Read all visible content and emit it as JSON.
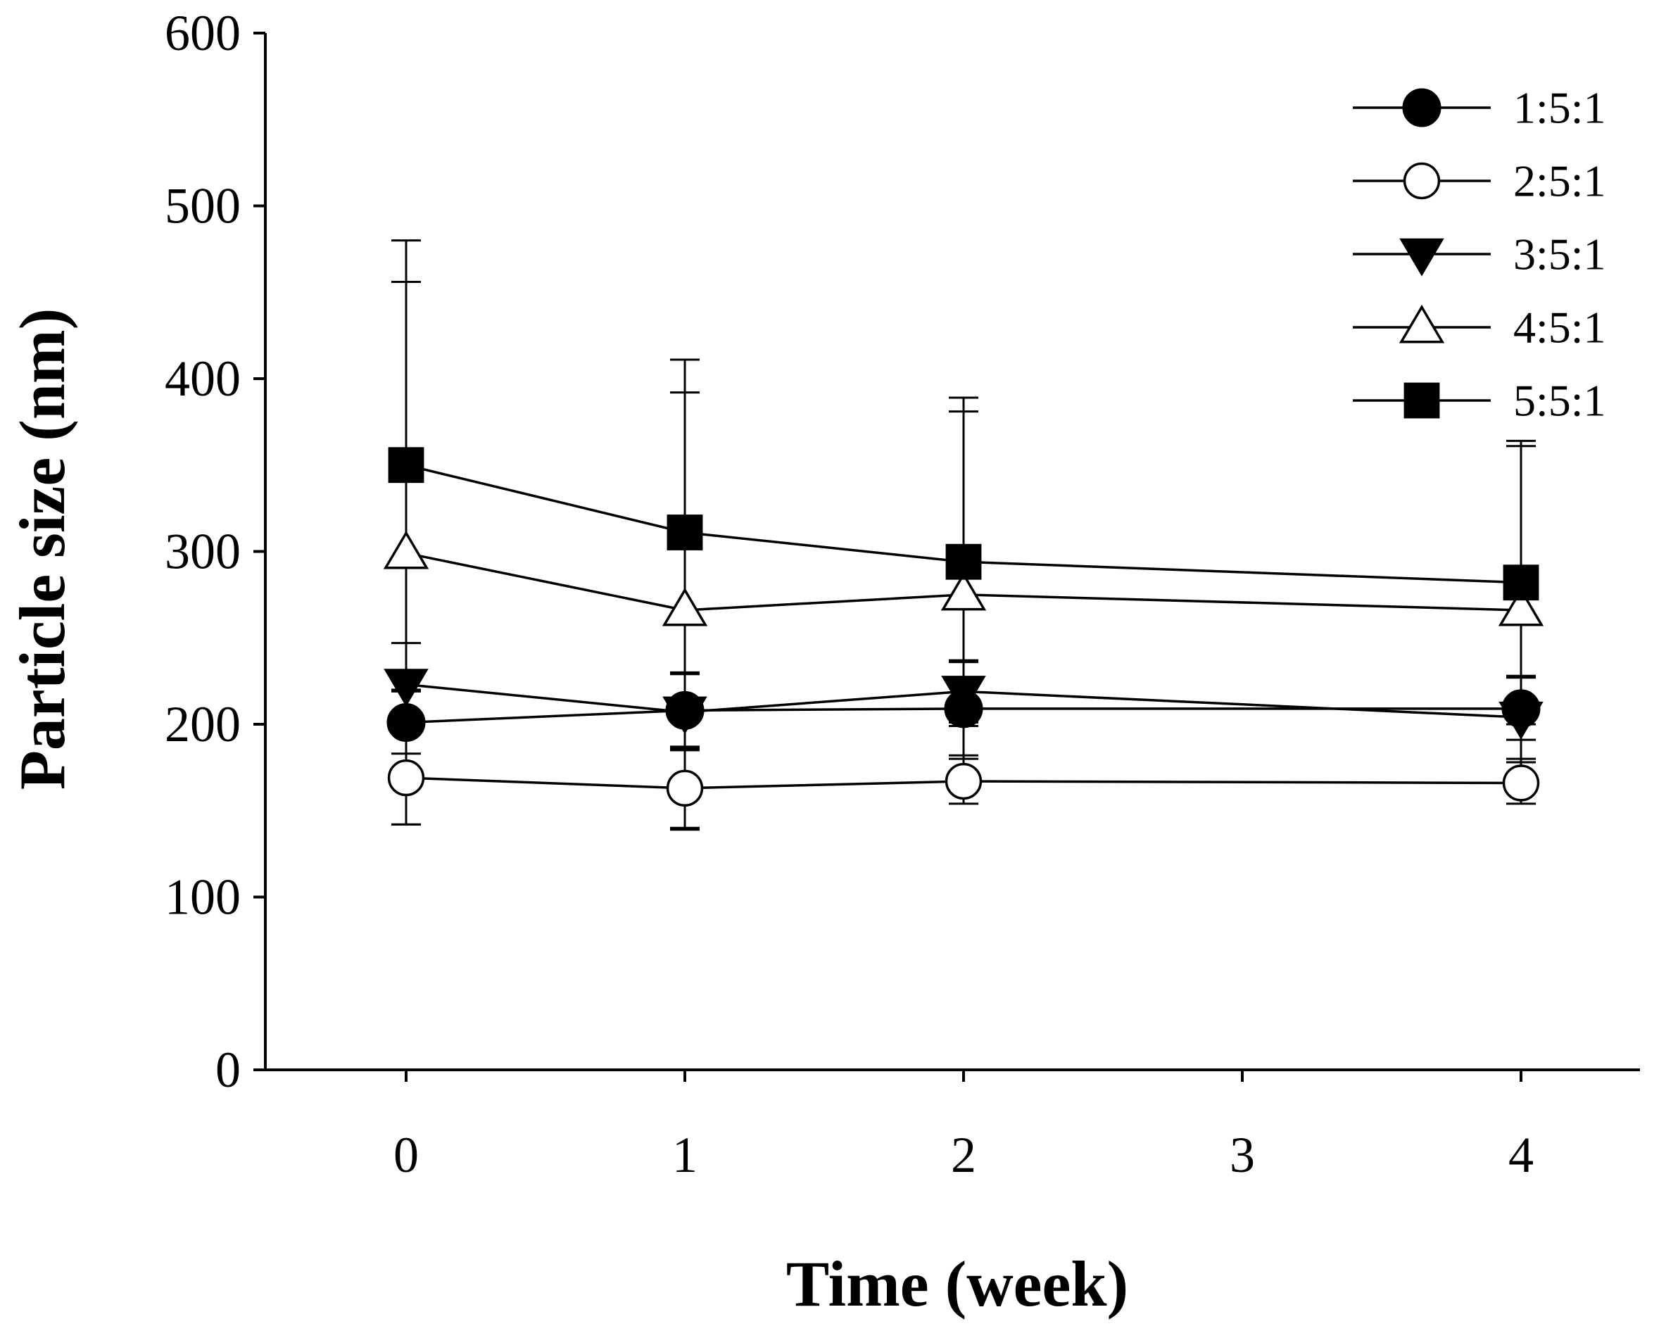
{
  "chart_data": {
    "type": "line",
    "title": "",
    "xlabel": "Time (week)",
    "ylabel": "Particle size (nm)",
    "xlim": [
      -0.5,
      4.5
    ],
    "ylim": [
      0,
      600
    ],
    "x_ticks": [
      0,
      1,
      2,
      3,
      4
    ],
    "x_tick_labels": [
      "0",
      "1",
      "2",
      "3",
      "4"
    ],
    "y_ticks": [
      0,
      100,
      200,
      300,
      400,
      500,
      600
    ],
    "y_tick_labels": [
      "0",
      "100",
      "200",
      "300",
      "400",
      "500",
      "600"
    ],
    "grid": false,
    "legend_position": "top-right",
    "error_bars": "one standard deviation, caps above and below",
    "series": [
      {
        "name": "1:5:1",
        "marker": "filled-circle",
        "x": [
          0,
          1,
          2,
          4
        ],
        "values": [
          201,
          208,
          209,
          209
        ],
        "errors": [
          18,
          22,
          27,
          18
        ]
      },
      {
        "name": "2:5:1",
        "marker": "open-circle",
        "x": [
          0,
          1,
          2,
          4
        ],
        "values": [
          169,
          163,
          167,
          166
        ],
        "errors": [
          27,
          24,
          13,
          12
        ]
      },
      {
        "name": "3:5:1",
        "marker": "filled-triangle-down",
        "x": [
          0,
          1,
          2,
          4
        ],
        "values": [
          223,
          207,
          219,
          204
        ],
        "errors": [
          24,
          22,
          18,
          24
        ]
      },
      {
        "name": "4:5:1",
        "marker": "open-triangle-up",
        "x": [
          0,
          1,
          2,
          4
        ],
        "values": [
          299,
          266,
          275,
          266
        ],
        "errors": [
          157,
          126,
          106,
          95
        ]
      },
      {
        "name": "5:5:1",
        "marker": "filled-square",
        "x": [
          0,
          1,
          2,
          4
        ],
        "values": [
          350,
          311,
          294,
          282
        ],
        "errors": [
          130,
          100,
          95,
          82
        ]
      }
    ]
  }
}
